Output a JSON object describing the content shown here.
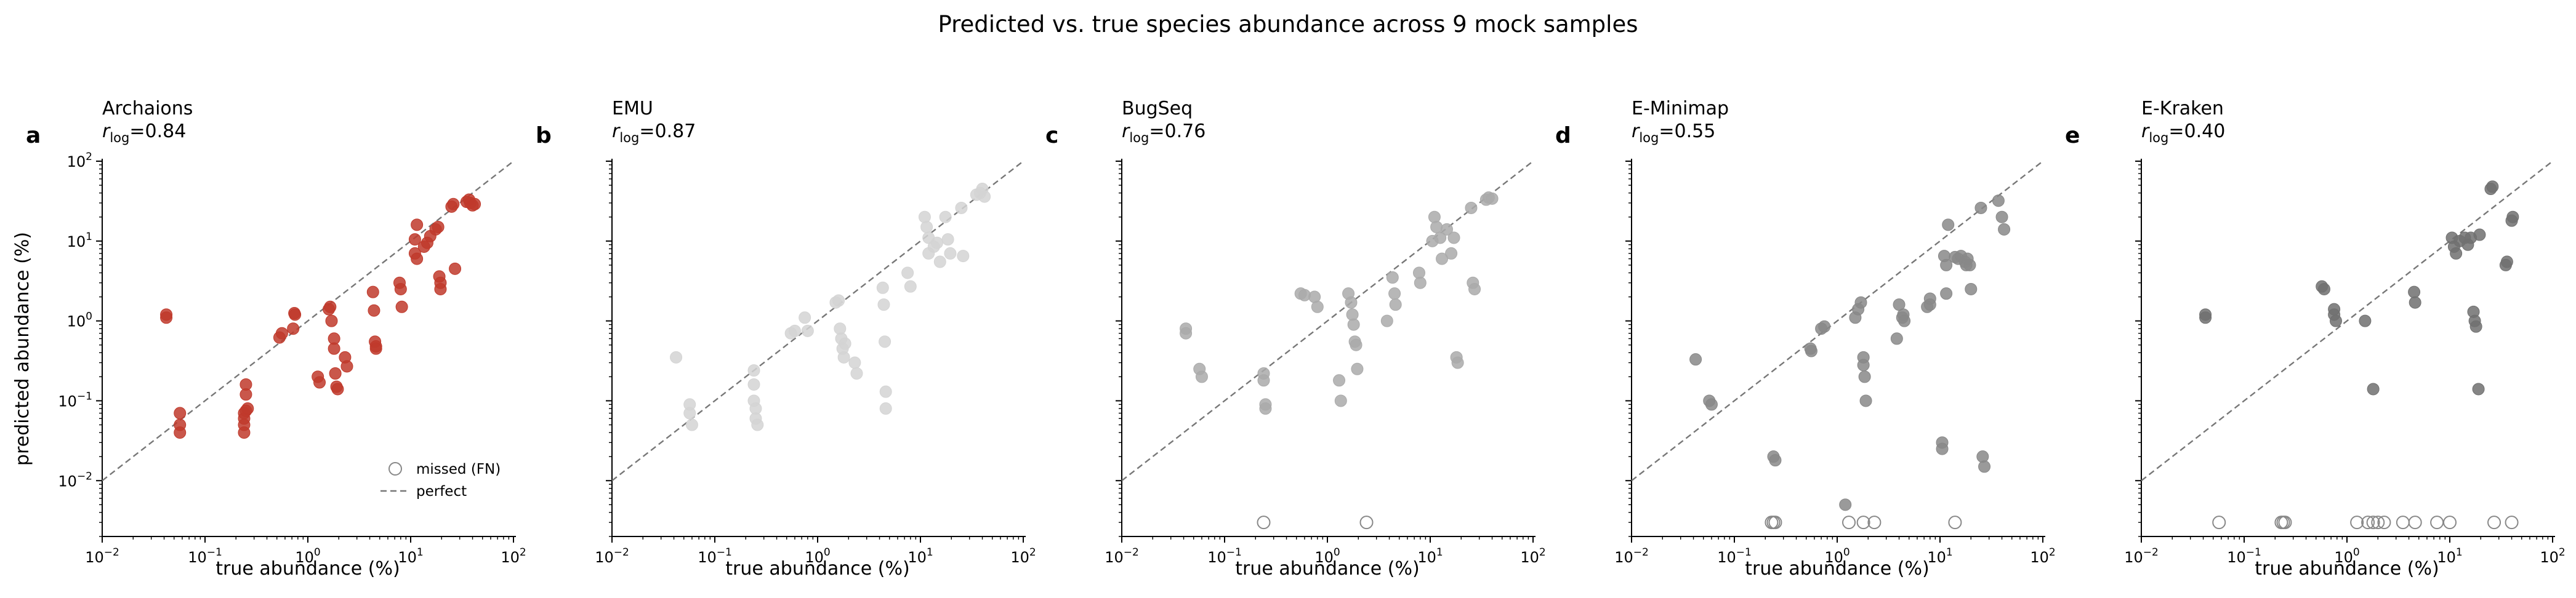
{
  "figure": {
    "title": "Predicted vs. true species abundance across 9 mock samples"
  },
  "legend": {
    "missed_label": "missed (FN)",
    "perfect_label": "perfect"
  },
  "chart_data": [
    {
      "type": "scatter",
      "panel": "a",
      "title": "Archaions",
      "r_prefix": "r",
      "r_sub": "log",
      "r_value": "=0.84",
      "xlabel": "true abundance (%)",
      "ylabel": "predicted abundance (%)",
      "xscale": "log",
      "yscale": "log",
      "xlim": [
        0.01,
        100
      ],
      "ylim": [
        0.002,
        100
      ],
      "x_ticks": [
        "10^-2",
        "10^-1",
        "10^0",
        "10^1",
        "10^2"
      ],
      "y_ticks": [
        "10^-2",
        "10^-1",
        "10^0",
        "10^1",
        "10^2"
      ],
      "color": "#c0392b",
      "reference": "perfect",
      "points": [
        [
          0.042,
          1.1
        ],
        [
          0.042,
          1.2
        ],
        [
          0.057,
          0.05
        ],
        [
          0.057,
          0.07
        ],
        [
          0.057,
          0.04
        ],
        [
          0.24,
          0.07
        ],
        [
          0.24,
          0.06
        ],
        [
          0.24,
          0.05
        ],
        [
          0.24,
          0.04
        ],
        [
          0.25,
          0.16
        ],
        [
          0.25,
          0.12
        ],
        [
          0.25,
          0.075
        ],
        [
          0.26,
          0.08
        ],
        [
          0.53,
          0.62
        ],
        [
          0.56,
          0.7
        ],
        [
          0.72,
          0.8
        ],
        [
          0.74,
          1.25
        ],
        [
          0.75,
          1.2
        ],
        [
          1.25,
          0.2
        ],
        [
          1.3,
          0.17
        ],
        [
          1.6,
          1.4
        ],
        [
          1.65,
          1.5
        ],
        [
          1.7,
          1.0
        ],
        [
          1.8,
          0.6
        ],
        [
          1.8,
          0.45
        ],
        [
          1.85,
          0.22
        ],
        [
          1.9,
          0.15
        ],
        [
          1.95,
          0.14
        ],
        [
          2.3,
          0.35
        ],
        [
          2.4,
          0.27
        ],
        [
          4.3,
          2.3
        ],
        [
          4.4,
          1.35
        ],
        [
          4.5,
          0.55
        ],
        [
          4.6,
          0.48
        ],
        [
          4.6,
          0.45
        ],
        [
          7.8,
          3.0
        ],
        [
          8.0,
          2.5
        ],
        [
          8.2,
          1.5
        ],
        [
          11.0,
          7.0
        ],
        [
          11.0,
          10.5
        ],
        [
          11.5,
          16.0
        ],
        [
          11.5,
          6.0
        ],
        [
          13.5,
          8.5
        ],
        [
          14.5,
          9.5
        ],
        [
          15.5,
          11.5
        ],
        [
          17.5,
          14.0
        ],
        [
          18.5,
          15.0
        ],
        [
          19.0,
          3.6
        ],
        [
          19.5,
          3.0
        ],
        [
          19.5,
          2.5
        ],
        [
          25.0,
          27.0
        ],
        [
          26.0,
          29.0
        ],
        [
          27.0,
          4.5
        ],
        [
          35.0,
          31.0
        ],
        [
          37.0,
          33.0
        ],
        [
          38.0,
          30.0
        ],
        [
          40.0,
          28.0
        ],
        [
          42.0,
          29.0
        ]
      ],
      "missed_x": []
    },
    {
      "type": "scatter",
      "panel": "b",
      "title": "EMU",
      "r_prefix": "r",
      "r_sub": "log",
      "r_value": "=0.87",
      "xlabel": "true abundance (%)",
      "xscale": "log",
      "yscale": "log",
      "xlim": [
        0.01,
        100
      ],
      "ylim": [
        0.002,
        100
      ],
      "x_ticks": [
        "10^-2",
        "10^-1",
        "10^0",
        "10^1",
        "10^2"
      ],
      "color": "#d4d4d4",
      "reference": "perfect",
      "points": [
        [
          0.042,
          0.35
        ],
        [
          0.057,
          0.09
        ],
        [
          0.057,
          0.07
        ],
        [
          0.06,
          0.05
        ],
        [
          0.24,
          0.24
        ],
        [
          0.24,
          0.16
        ],
        [
          0.24,
          0.1
        ],
        [
          0.25,
          0.08
        ],
        [
          0.25,
          0.06
        ],
        [
          0.26,
          0.05
        ],
        [
          0.55,
          0.7
        ],
        [
          0.6,
          0.75
        ],
        [
          0.75,
          1.1
        ],
        [
          0.8,
          0.75
        ],
        [
          1.5,
          1.7
        ],
        [
          1.6,
          1.8
        ],
        [
          1.65,
          0.8
        ],
        [
          1.7,
          0.6
        ],
        [
          1.75,
          0.45
        ],
        [
          1.8,
          0.35
        ],
        [
          1.85,
          0.52
        ],
        [
          2.3,
          0.3
        ],
        [
          2.4,
          0.22
        ],
        [
          4.3,
          2.6
        ],
        [
          4.4,
          1.6
        ],
        [
          4.5,
          0.55
        ],
        [
          4.6,
          0.13
        ],
        [
          4.6,
          0.08
        ],
        [
          7.5,
          4.0
        ],
        [
          8.0,
          2.7
        ],
        [
          11.0,
          20.0
        ],
        [
          11.5,
          15.0
        ],
        [
          12.0,
          7.0
        ],
        [
          12.0,
          11.0
        ],
        [
          13.5,
          8.5
        ],
        [
          14.5,
          9.5
        ],
        [
          15.5,
          5.5
        ],
        [
          17.5,
          20.0
        ],
        [
          18.5,
          10.5
        ],
        [
          19.5,
          7.0
        ],
        [
          25.0,
          26.0
        ],
        [
          26.0,
          6.5
        ],
        [
          35.0,
          38.0
        ],
        [
          38.0,
          40.0
        ],
        [
          40.0,
          45.0
        ],
        [
          42.0,
          36.0
        ]
      ],
      "missed_x": []
    },
    {
      "type": "scatter",
      "panel": "c",
      "title": "BugSeq",
      "r_prefix": "r",
      "r_sub": "log",
      "r_value": "=0.76",
      "xlabel": "true abundance (%)",
      "xscale": "log",
      "yscale": "log",
      "xlim": [
        0.01,
        100
      ],
      "ylim": [
        0.002,
        100
      ],
      "x_ticks": [
        "10^-2",
        "10^-1",
        "10^0",
        "10^1",
        "10^2"
      ],
      "color": "#aaaaaa",
      "reference": "perfect",
      "points": [
        [
          0.042,
          0.8
        ],
        [
          0.042,
          0.7
        ],
        [
          0.057,
          0.25
        ],
        [
          0.06,
          0.2
        ],
        [
          0.24,
          0.22
        ],
        [
          0.24,
          0.18
        ],
        [
          0.25,
          0.09
        ],
        [
          0.25,
          0.08
        ],
        [
          0.55,
          2.2
        ],
        [
          0.6,
          2.1
        ],
        [
          0.75,
          2.0
        ],
        [
          0.8,
          1.5
        ],
        [
          1.3,
          0.18
        ],
        [
          1.35,
          0.1
        ],
        [
          1.6,
          2.2
        ],
        [
          1.7,
          1.7
        ],
        [
          1.75,
          1.2
        ],
        [
          1.8,
          0.9
        ],
        [
          1.85,
          0.55
        ],
        [
          1.9,
          0.5
        ],
        [
          1.95,
          0.25
        ],
        [
          3.8,
          1.0
        ],
        [
          4.3,
          3.5
        ],
        [
          4.5,
          2.2
        ],
        [
          4.6,
          1.6
        ],
        [
          7.8,
          4.0
        ],
        [
          8.0,
          3.0
        ],
        [
          10.5,
          10.0
        ],
        [
          11.0,
          20.0
        ],
        [
          11.5,
          15.0
        ],
        [
          12.5,
          11.0
        ],
        [
          13.0,
          6.0
        ],
        [
          14.5,
          14.0
        ],
        [
          16.0,
          7.0
        ],
        [
          17.0,
          11.0
        ],
        [
          18.0,
          0.35
        ],
        [
          18.5,
          0.3
        ],
        [
          25.0,
          26.0
        ],
        [
          26.0,
          3.0
        ],
        [
          27.0,
          2.5
        ],
        [
          35.0,
          33.0
        ],
        [
          37.0,
          35.0
        ],
        [
          40.0,
          34.0
        ]
      ],
      "missed_x": [
        0.24,
        2.4
      ]
    },
    {
      "type": "scatter",
      "panel": "d",
      "title": "E-Minimap",
      "r_prefix": "r",
      "r_sub": "log",
      "r_value": "=0.55",
      "xlabel": "true abundance (%)",
      "xscale": "log",
      "yscale": "log",
      "xlim": [
        0.01,
        100
      ],
      "ylim": [
        0.002,
        100
      ],
      "x_ticks": [
        "10^-2",
        "10^-1",
        "10^0",
        "10^1",
        "10^2"
      ],
      "color": "#888888",
      "reference": "perfect",
      "points": [
        [
          0.042,
          0.33
        ],
        [
          0.057,
          0.1
        ],
        [
          0.06,
          0.09
        ],
        [
          0.24,
          0.02
        ],
        [
          0.25,
          0.018
        ],
        [
          0.55,
          0.45
        ],
        [
          0.56,
          0.42
        ],
        [
          0.7,
          0.8
        ],
        [
          0.75,
          0.85
        ],
        [
          1.2,
          0.005
        ],
        [
          1.5,
          1.1
        ],
        [
          1.6,
          1.4
        ],
        [
          1.7,
          1.7
        ],
        [
          1.8,
          0.35
        ],
        [
          1.8,
          0.28
        ],
        [
          1.85,
          0.2
        ],
        [
          1.9,
          0.1
        ],
        [
          3.8,
          0.6
        ],
        [
          4.0,
          1.6
        ],
        [
          4.3,
          1.1
        ],
        [
          4.4,
          1.2
        ],
        [
          4.5,
          1.0
        ],
        [
          7.5,
          1.5
        ],
        [
          8.0,
          1.9
        ],
        [
          8.0,
          1.6
        ],
        [
          10.5,
          0.03
        ],
        [
          10.5,
          0.025
        ],
        [
          11.0,
          6.5
        ],
        [
          11.5,
          5.0
        ],
        [
          11.5,
          2.2
        ],
        [
          12.0,
          16.0
        ],
        [
          14.0,
          6.3
        ],
        [
          15.0,
          6.0
        ],
        [
          16.0,
          6.5
        ],
        [
          17.5,
          5.5
        ],
        [
          18.0,
          5.0
        ],
        [
          18.5,
          6.0
        ],
        [
          19.5,
          5.0
        ],
        [
          20.0,
          2.5
        ],
        [
          25.0,
          26.0
        ],
        [
          26.0,
          0.02
        ],
        [
          27.0,
          0.015
        ],
        [
          37.0,
          32.0
        ],
        [
          40.0,
          20.0
        ],
        [
          42.0,
          14.0
        ]
      ],
      "missed_x": [
        0.23,
        0.24,
        0.25,
        1.3,
        1.8,
        2.3,
        14.0
      ]
    },
    {
      "type": "scatter",
      "panel": "e",
      "title": "E-Kraken",
      "r_prefix": "r",
      "r_sub": "log",
      "r_value": "=0.40",
      "xlabel": "true abundance (%)",
      "xscale": "log",
      "yscale": "log",
      "xlim": [
        0.01,
        100
      ],
      "ylim": [
        0.002,
        100
      ],
      "x_ticks": [
        "10^-2",
        "10^-1",
        "10^0",
        "10^1",
        "10^2"
      ],
      "color": "#707070",
      "reference": "perfect",
      "points": [
        [
          0.042,
          1.1
        ],
        [
          0.042,
          1.2
        ],
        [
          0.57,
          2.7
        ],
        [
          0.6,
          2.5
        ],
        [
          0.75,
          1.2
        ],
        [
          0.75,
          1.4
        ],
        [
          0.78,
          1.0
        ],
        [
          1.5,
          1.0
        ],
        [
          1.8,
          0.14
        ],
        [
          4.5,
          2.3
        ],
        [
          4.6,
          1.7
        ],
        [
          10.5,
          11.0
        ],
        [
          11.0,
          8.5
        ],
        [
          11.5,
          7.0
        ],
        [
          12.5,
          10.0
        ],
        [
          14.0,
          11.0
        ],
        [
          15.0,
          9.0
        ],
        [
          16.0,
          11.0
        ],
        [
          17.0,
          1.3
        ],
        [
          17.5,
          1.0
        ],
        [
          18.0,
          0.85
        ],
        [
          19.0,
          0.14
        ],
        [
          19.5,
          12.0
        ],
        [
          25.0,
          45.0
        ],
        [
          26.0,
          48.0
        ],
        [
          35.0,
          5.0
        ],
        [
          36.0,
          5.5
        ],
        [
          40.0,
          18.0
        ],
        [
          41.0,
          20.0
        ]
      ],
      "missed_x": [
        0.057,
        0.23,
        0.24,
        0.25,
        1.25,
        1.6,
        1.8,
        2.0,
        2.3,
        3.5,
        4.6,
        7.5,
        10.0,
        27.0,
        40.0
      ]
    }
  ]
}
